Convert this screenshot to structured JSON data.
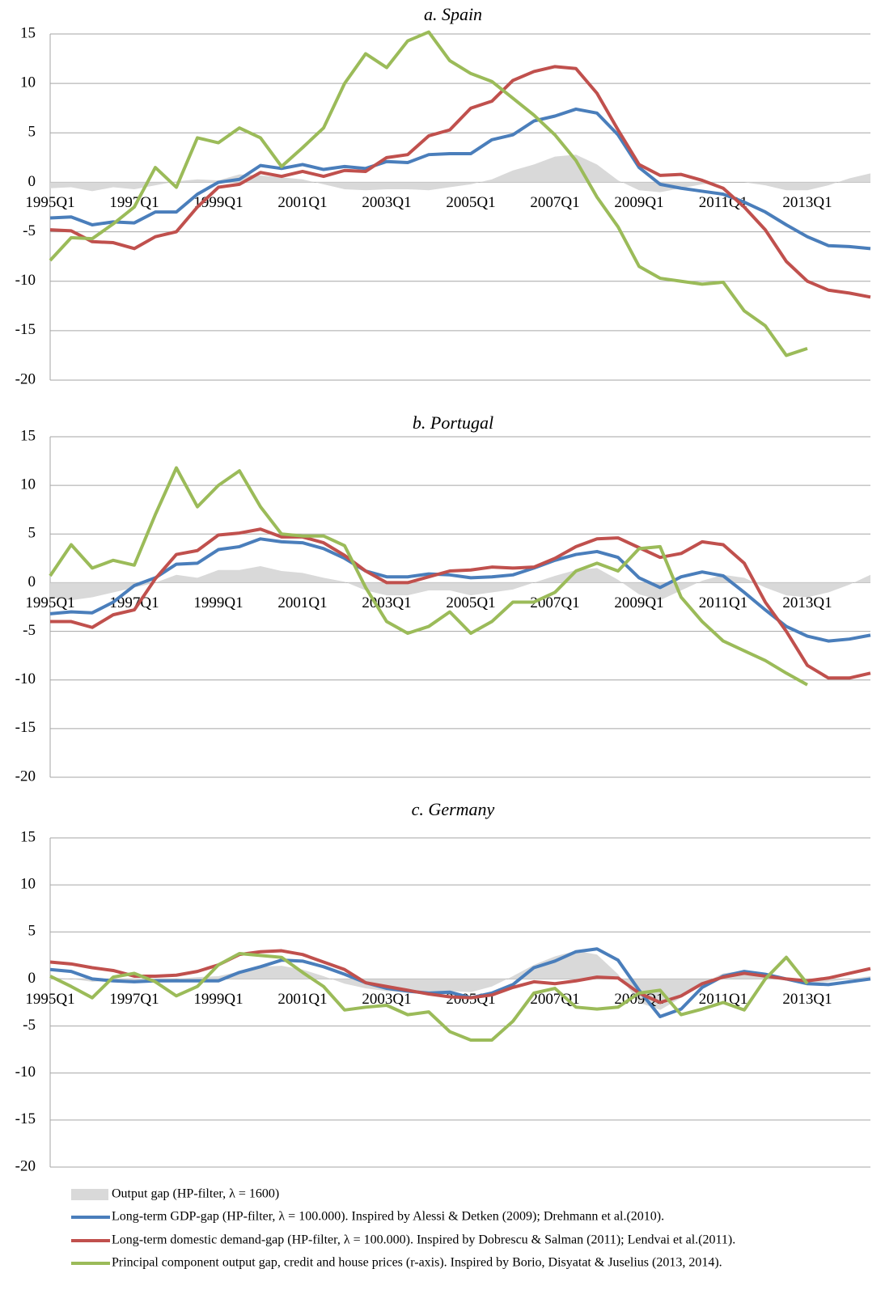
{
  "chart_data": [
    {
      "type": "line",
      "title": "a. Spain",
      "categories": [
        "1995Q1",
        null,
        null,
        null,
        "1997Q1",
        null,
        null,
        null,
        "1999Q1",
        null,
        null,
        null,
        "2001Q1",
        null,
        null,
        null,
        "2003Q1",
        null,
        null,
        null,
        "2005Q1",
        null,
        null,
        null,
        "2007Q1",
        null,
        null,
        null,
        "2009Q1",
        null,
        null,
        null,
        "2011Q1",
        null,
        null,
        null,
        "2013Q1",
        null,
        null,
        null
      ],
      "ylim": [
        -20,
        15
      ],
      "yticks": [
        -20,
        -15,
        -10,
        -5,
        0,
        5,
        10,
        15
      ],
      "grid": true,
      "series": [
        {
          "name": "Output gap (HP-filter, λ = 1600)",
          "type": "area",
          "color": "#d9d9d9",
          "values": [
            -0.6,
            -0.5,
            -0.9,
            -0.5,
            -0.7,
            -0.3,
            0.1,
            0.3,
            0.2,
            0.8,
            0.7,
            0.5,
            0.3,
            -0.2,
            -0.7,
            -0.8,
            -0.7,
            -0.7,
            -0.8,
            -0.5,
            -0.2,
            0.3,
            1.2,
            1.8,
            2.6,
            2.8,
            1.8,
            0.2,
            -0.8,
            -1.0,
            -0.6,
            -0.2,
            0.0,
            0.0,
            -0.3,
            -0.8,
            -0.8,
            -0.3,
            0.4,
            0.9
          ]
        },
        {
          "name": "Long-term GDP-gap (HP-filter, λ = 100.000). Inspired by Alessi & Detken (2009); Drehmann et al.(2010).",
          "type": "line",
          "color": "#4a7ebb",
          "values": [
            -3.6,
            -3.5,
            -4.3,
            -4.0,
            -4.1,
            -3.0,
            -3.0,
            -1.2,
            0.0,
            0.3,
            1.7,
            1.4,
            1.8,
            1.3,
            1.6,
            1.4,
            2.1,
            2.0,
            2.8,
            2.9,
            2.9,
            4.3,
            4.8,
            6.2,
            6.7,
            7.4,
            7.0,
            4.8,
            1.5,
            -0.2,
            -0.6,
            -0.9,
            -1.2,
            -2.0,
            -3.0,
            -4.3,
            -5.5,
            -6.4,
            -6.5,
            -6.7
          ]
        },
        {
          "name": "Long-term domestic demand-gap (HP-filter, λ = 100.000). Inspired by Dobrescu & Salman (2011); Lendvai et al.(2011).",
          "type": "line",
          "color": "#c0504d",
          "values": [
            -4.8,
            -4.9,
            -6.0,
            -6.1,
            -6.7,
            -5.5,
            -5.0,
            -2.5,
            -0.5,
            -0.2,
            1.0,
            0.6,
            1.1,
            0.6,
            1.2,
            1.1,
            2.5,
            2.8,
            4.7,
            5.3,
            7.5,
            8.2,
            10.3,
            11.2,
            11.7,
            11.5,
            9.0,
            5.3,
            1.8,
            0.7,
            0.8,
            0.2,
            -0.6,
            -2.5,
            -4.8,
            -8.0,
            -10.0,
            -10.9,
            -11.2,
            -11.6
          ]
        },
        {
          "name": "Principal component output gap, credit and house prices (r-axis). Inspired by Borio, Disyatat & Juselius (2013, 2014).",
          "type": "line",
          "color": "#9bbb59",
          "values": [
            -7.9,
            -5.6,
            -5.7,
            -4.2,
            -2.5,
            1.5,
            -0.5,
            4.5,
            4.0,
            5.5,
            4.5,
            1.6,
            3.5,
            5.5,
            10.0,
            13.0,
            11.6,
            14.3,
            15.2,
            12.3,
            11.0,
            10.2,
            8.5,
            6.8,
            4.8,
            2.2,
            -1.5,
            -4.5,
            -8.5,
            -9.7,
            -10.0,
            -10.3,
            -10.1,
            -13.0,
            -14.5,
            -17.5,
            -16.8,
            null,
            null,
            null
          ]
        }
      ]
    },
    {
      "type": "line",
      "title": "b. Portugal",
      "categories": [
        "1995Q1",
        null,
        null,
        null,
        "1997Q1",
        null,
        null,
        null,
        "1999Q1",
        null,
        null,
        null,
        "2001Q1",
        null,
        null,
        null,
        "2003Q1",
        null,
        null,
        null,
        "2005Q1",
        null,
        null,
        null,
        "2007Q1",
        null,
        null,
        null,
        "2009Q1",
        null,
        null,
        null,
        "2011Q1",
        null,
        null,
        null,
        "2013Q1",
        null,
        null,
        null
      ],
      "ylim": [
        -20,
        15
      ],
      "yticks": [
        -20,
        -15,
        -10,
        -5,
        0,
        5,
        10,
        15
      ],
      "grid": true,
      "series": [
        {
          "type": "area",
          "color": "#d9d9d9",
          "values": [
            -1.5,
            -1.8,
            -1.5,
            -1.0,
            -0.5,
            0.0,
            0.8,
            0.5,
            1.3,
            1.3,
            1.7,
            1.2,
            1.0,
            0.5,
            0.1,
            -0.8,
            -1.3,
            -1.3,
            -0.8,
            -0.8,
            -1.3,
            -1.0,
            -0.7,
            0.0,
            0.7,
            1.3,
            1.5,
            0.3,
            -1.2,
            -1.8,
            -0.8,
            0.2,
            0.8,
            0.5,
            -0.5,
            -1.3,
            -1.5,
            -1.0,
            -0.2,
            0.8
          ]
        },
        {
          "type": "line",
          "color": "#4a7ebb",
          "values": [
            -3.2,
            -3.0,
            -3.1,
            -2.0,
            -0.3,
            0.5,
            1.9,
            2.0,
            3.4,
            3.7,
            4.5,
            4.2,
            4.1,
            3.5,
            2.5,
            1.2,
            0.6,
            0.6,
            0.9,
            0.8,
            0.5,
            0.6,
            0.8,
            1.5,
            2.3,
            2.9,
            3.2,
            2.6,
            0.5,
            -0.5,
            0.6,
            1.1,
            0.7,
            -1.0,
            -2.8,
            -4.5,
            -5.5,
            -6.0,
            -5.8,
            -5.4
          ]
        },
        {
          "type": "line",
          "color": "#c0504d",
          "values": [
            -4.0,
            -4.0,
            -4.6,
            -3.3,
            -2.8,
            0.4,
            2.9,
            3.3,
            4.9,
            5.1,
            5.5,
            4.7,
            4.7,
            4.1,
            2.8,
            1.2,
            0.0,
            0.0,
            0.6,
            1.2,
            1.3,
            1.6,
            1.5,
            1.6,
            2.5,
            3.7,
            4.5,
            4.6,
            3.6,
            2.6,
            3.0,
            4.2,
            3.9,
            2.0,
            -2.0,
            -5.0,
            -8.5,
            -9.8,
            -9.8,
            -9.3
          ]
        },
        {
          "type": "line",
          "color": "#9bbb59",
          "values": [
            0.7,
            3.9,
            1.5,
            2.3,
            1.8,
            7.0,
            11.8,
            7.8,
            10.0,
            11.5,
            7.8,
            5.0,
            4.8,
            4.8,
            3.8,
            -0.5,
            -4.0,
            -5.2,
            -4.5,
            -3.0,
            -5.2,
            -4.0,
            -2.0,
            -2.0,
            -1.0,
            1.2,
            2.0,
            1.2,
            3.5,
            3.7,
            -1.5,
            -4.0,
            -6.0,
            -7.0,
            -8.0,
            -9.3,
            -10.5,
            null,
            null,
            null
          ]
        }
      ]
    },
    {
      "type": "line",
      "title": "c. Germany",
      "categories": [
        "1995Q1",
        null,
        null,
        null,
        "1997Q1",
        null,
        null,
        null,
        "1999Q1",
        null,
        null,
        null,
        "2001Q1",
        null,
        null,
        null,
        "2003Q1",
        null,
        null,
        null,
        "2005Q1",
        null,
        null,
        null,
        "2007Q1",
        null,
        null,
        null,
        "2009Q1",
        null,
        null,
        null,
        "2011Q1",
        null,
        null,
        null,
        "2013Q1",
        null,
        null,
        null
      ],
      "ylim": [
        -20,
        15
      ],
      "yticks": [
        -20,
        -15,
        -10,
        -5,
        0,
        5,
        10,
        15
      ],
      "grid": true,
      "series": [
        {
          "type": "area",
          "color": "#d9d9d9",
          "values": [
            0.2,
            0.0,
            -0.3,
            -0.2,
            -0.3,
            -0.2,
            0.0,
            0.2,
            0.3,
            0.8,
            1.3,
            1.4,
            1.0,
            0.3,
            -0.5,
            -1.0,
            -1.3,
            -1.4,
            -1.4,
            -1.3,
            -1.4,
            -0.8,
            0.3,
            1.5,
            2.4,
            3.0,
            2.6,
            0.5,
            -2.5,
            -3.3,
            -2.0,
            -0.5,
            0.6,
            0.9,
            0.5,
            0.0,
            -0.5,
            -0.3,
            0.0,
            0.3
          ]
        },
        {
          "type": "line",
          "color": "#4a7ebb",
          "values": [
            1.0,
            0.8,
            0.0,
            -0.2,
            -0.3,
            -0.2,
            -0.2,
            -0.2,
            -0.2,
            0.7,
            1.3,
            2.0,
            1.9,
            1.3,
            0.5,
            -0.4,
            -1.0,
            -1.3,
            -1.5,
            -1.4,
            -2.0,
            -1.5,
            -0.6,
            1.2,
            1.9,
            2.9,
            3.2,
            2.0,
            -1.2,
            -4.0,
            -3.2,
            -0.9,
            0.3,
            0.8,
            0.5,
            0.0,
            -0.5,
            -0.6,
            -0.3,
            0.0
          ]
        },
        {
          "type": "line",
          "color": "#c0504d",
          "values": [
            1.8,
            1.6,
            1.2,
            0.9,
            0.3,
            0.3,
            0.4,
            0.8,
            1.5,
            2.6,
            2.9,
            3.0,
            2.6,
            1.8,
            1.0,
            -0.4,
            -0.8,
            -1.2,
            -1.6,
            -1.9,
            -2.0,
            -1.7,
            -0.9,
            -0.3,
            -0.5,
            -0.2,
            0.2,
            0.1,
            -1.5,
            -2.5,
            -1.8,
            -0.5,
            0.2,
            0.6,
            0.3,
            0.0,
            -0.2,
            0.1,
            0.6,
            1.1
          ]
        },
        {
          "type": "line",
          "color": "#9bbb59",
          "values": [
            0.3,
            -0.8,
            -2.0,
            0.2,
            0.6,
            -0.3,
            -1.8,
            -0.8,
            1.5,
            2.7,
            2.5,
            2.3,
            0.7,
            -0.8,
            -3.3,
            -3.0,
            -2.8,
            -3.8,
            -3.5,
            -5.6,
            -6.5,
            -6.5,
            -4.5,
            -1.5,
            -1.0,
            -3.0,
            -3.2,
            -3.0,
            -1.5,
            -1.2,
            -3.8,
            -3.2,
            -2.5,
            -3.3,
            0.0,
            2.3,
            -0.5,
            null,
            null,
            null
          ]
        }
      ]
    }
  ]
}
